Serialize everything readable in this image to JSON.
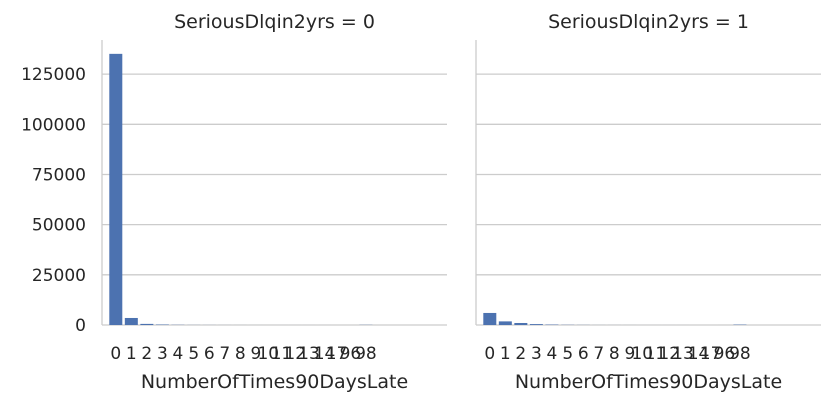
{
  "chart_data": {
    "type": "bar",
    "categories": [
      "0",
      "1",
      "2",
      "3",
      "4",
      "5",
      "6",
      "7",
      "8",
      "9",
      "10",
      "11",
      "12",
      "13",
      "14",
      "17",
      "96",
      "98"
    ],
    "panels": [
      {
        "title": "SeriousDlqin2yrs = 0",
        "xlabel": "NumberOfTimes90DaysLate",
        "ylabel": "",
        "values": [
          135100,
          3500,
          550,
          220,
          90,
          40,
          30,
          15,
          10,
          8,
          5,
          3,
          2,
          2,
          2,
          0,
          1,
          80
        ]
      },
      {
        "title": "SeriousDlqin2yrs = 1",
        "xlabel": "NumberOfTimes90DaysLate",
        "ylabel": "",
        "values": [
          6000,
          1800,
          1000,
          450,
          200,
          90,
          50,
          20,
          15,
          12,
          3,
          2,
          2,
          2,
          1,
          1,
          4,
          180
        ]
      }
    ],
    "yticks": [
      0,
      25000,
      50000,
      75000,
      100000,
      125000
    ],
    "ylim": [
      0,
      142000
    ],
    "grid": "horizontal",
    "bar_color": "#4c72b0",
    "grid_color": "#cccccc",
    "axis_color": "#cccccc",
    "text_color": "#262626"
  }
}
